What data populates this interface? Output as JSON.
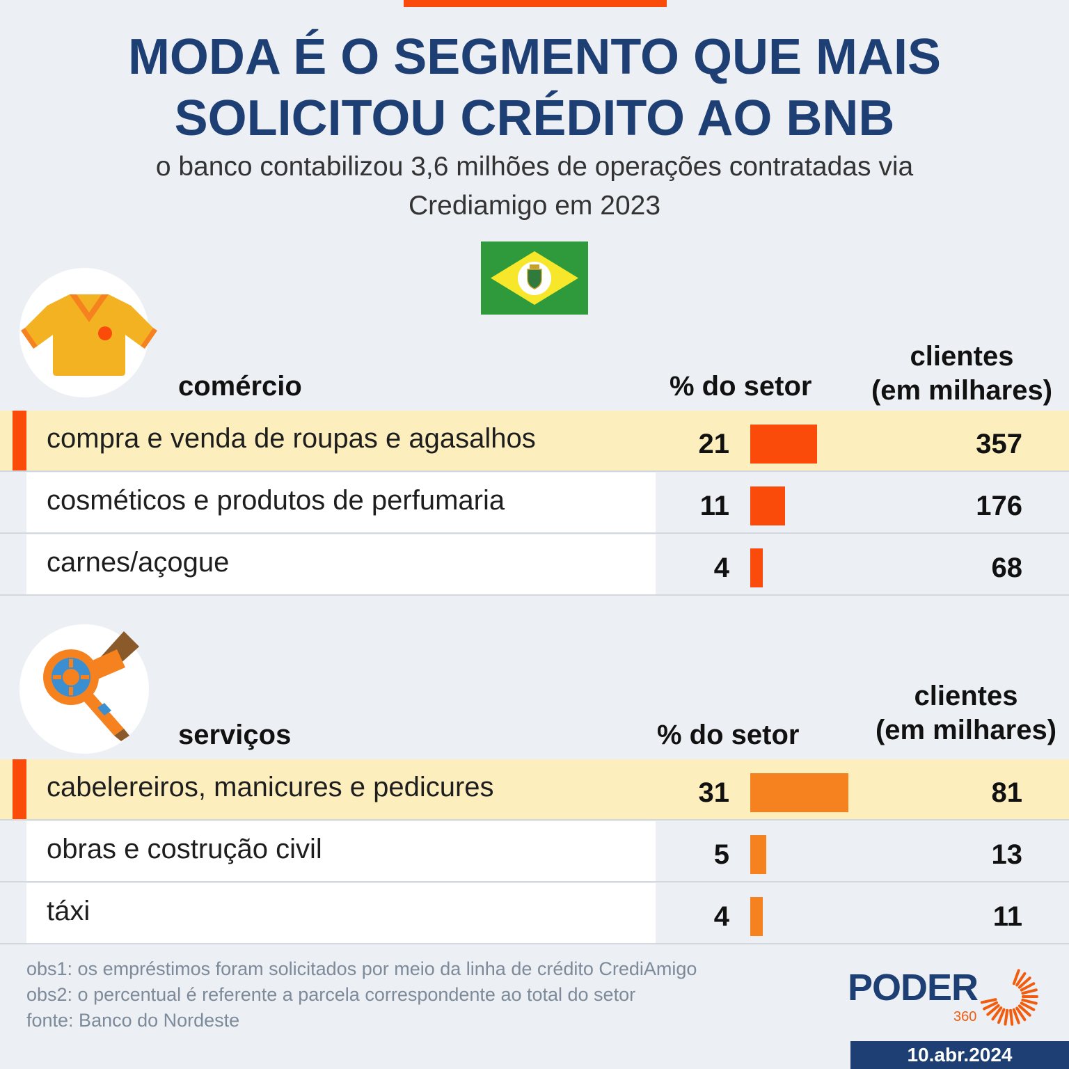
{
  "header": {
    "title_line1": "MODA É O SEGMENTO QUE MAIS",
    "title_line2": "SOLICITOU CRÉDITO AO BNB",
    "subtitle_line1": "o banco contabilizou 3,6 milhões de operações contratadas via",
    "subtitle_line2": "Crediamigo em 2023"
  },
  "colors": {
    "title": "#1e3f73",
    "accent": "#fb4b0b",
    "bar_comercio": "#fb4b0b",
    "bar_servicos": "#f5821f",
    "highlight": "#fceebd",
    "flag_green": "#2f9a3c",
    "flag_yellow": "#f6e72a"
  },
  "sections": [
    {
      "icon": "shirt-icon",
      "title": "comércio",
      "pct_header": "% do setor",
      "clients_header_line1": "clientes",
      "clients_header_line2": "(em milhares)"
    },
    {
      "icon": "hair-dryer-icon",
      "title": "serviços",
      "pct_header": "% do setor",
      "clients_header_line1": "clientes",
      "clients_header_line2": "(em milhares)"
    }
  ],
  "chart_data": [
    {
      "type": "table",
      "section": "comércio",
      "columns": [
        "",
        "% do setor",
        "clientes (em milhares)"
      ],
      "rows": [
        {
          "label": "compra e venda de roupas e agasalhos",
          "pct": 21,
          "clients": 357,
          "highlight": true
        },
        {
          "label": "cosméticos e produtos de perfumaria",
          "pct": 11,
          "clients": 176,
          "highlight": false
        },
        {
          "label": "carnes/açogue",
          "pct": 4,
          "clients": 68,
          "highlight": false
        }
      ]
    },
    {
      "type": "table",
      "section": "serviços",
      "columns": [
        "",
        "% do setor",
        "clientes (em milhares)"
      ],
      "rows": [
        {
          "label": "cabelereiros, manicures e pedicures",
          "pct": 31,
          "clients": 81,
          "highlight": true
        },
        {
          "label": "obras e costrução civil",
          "pct": 5,
          "clients": 13,
          "highlight": false
        },
        {
          "label": "táxi",
          "pct": 4,
          "clients": 11,
          "highlight": false
        }
      ]
    }
  ],
  "notes": {
    "obs1": "obs1: os empréstimos foram solicitados por meio da linha de crédito CrediAmigo",
    "obs2": "obs2: o percentual é referente a parcela correspondente ao total do setor",
    "source": "fonte: Banco do Nordeste"
  },
  "brand": {
    "name": "PODER",
    "number": "360",
    "date": "10.abr.2024"
  }
}
